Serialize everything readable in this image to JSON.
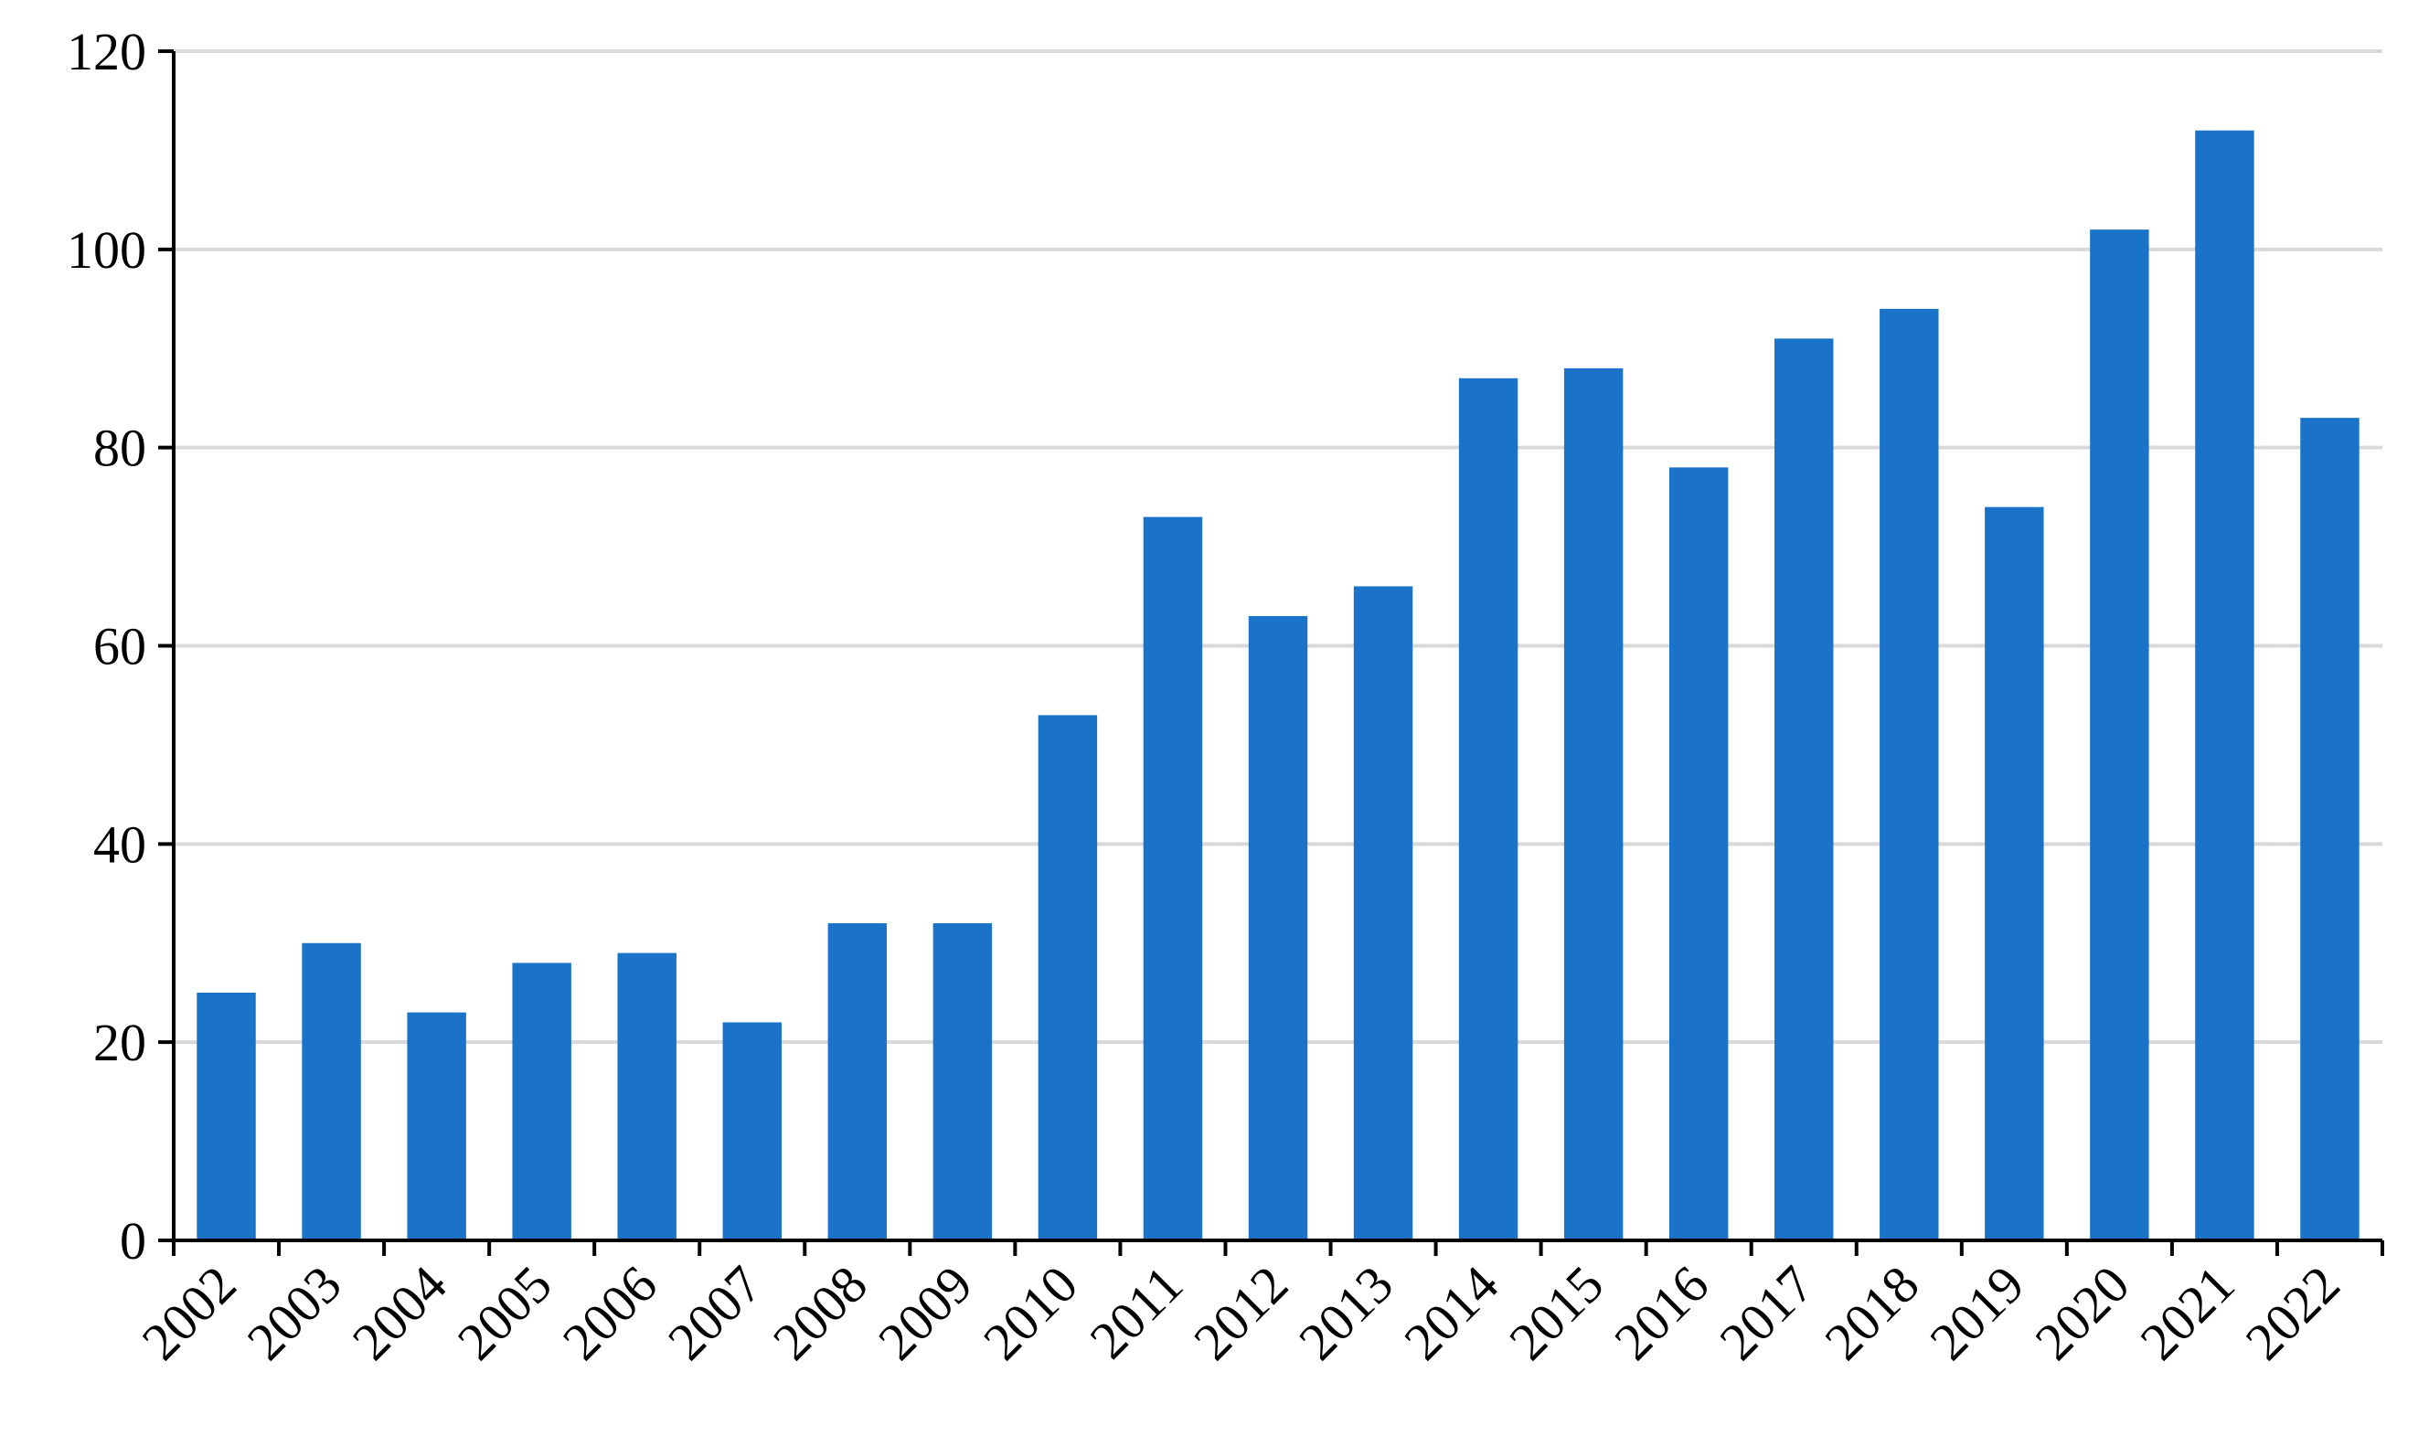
{
  "chart_data": {
    "type": "bar",
    "categories": [
      "2002",
      "2003",
      "2004",
      "2005",
      "2006",
      "2007",
      "2008",
      "2009",
      "2010",
      "2011",
      "2012",
      "2013",
      "2014",
      "2015",
      "2016",
      "2017",
      "2018",
      "2019",
      "2020",
      "2021",
      "2022"
    ],
    "values": [
      25,
      30,
      23,
      28,
      29,
      22,
      32,
      32,
      53,
      73,
      63,
      66,
      87,
      88,
      78,
      91,
      94,
      74,
      102,
      112,
      83
    ],
    "color": "#1a73c8",
    "ylim": [
      0,
      120
    ],
    "yticks": [
      0,
      20,
      40,
      60,
      80,
      100,
      120
    ],
    "grid": true
  }
}
